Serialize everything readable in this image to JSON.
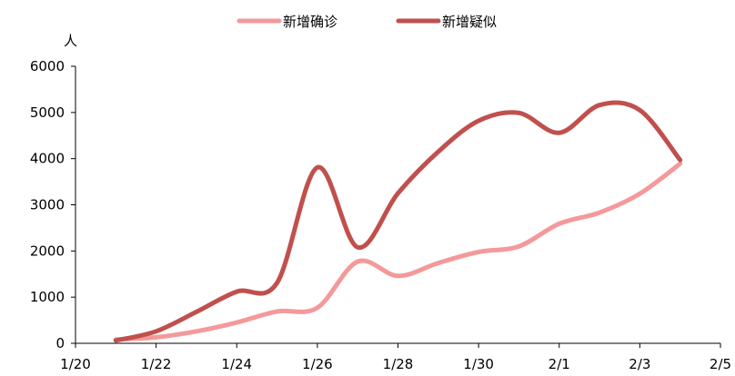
{
  "chart_data": {
    "type": "line",
    "ylabel": "人",
    "ylim": [
      0,
      6000
    ],
    "yticks": [
      "0",
      "1000",
      "2000",
      "3000",
      "4000",
      "5000",
      "6000"
    ],
    "xlim": [
      "2020-01-20",
      "2020-02-05"
    ],
    "xticks": [
      "1/20",
      "1/22",
      "1/24",
      "1/26",
      "1/28",
      "1/30",
      "2/1",
      "2/3",
      "2/5"
    ],
    "grid": false,
    "legend": "top-center",
    "x": [
      "2020-01-21",
      "2020-01-22",
      "2020-01-23",
      "2020-01-24",
      "2020-01-25",
      "2020-01-26",
      "2020-01-27",
      "2020-01-28",
      "2020-01-29",
      "2020-01-30",
      "2020-01-31",
      "2020-02-01",
      "2020-02-02",
      "2020-02-03",
      "2020-02-04"
    ],
    "series": [
      {
        "name": "新增确诊",
        "color": "#F4999B",
        "values": [
          80,
          130,
          260,
          450,
          690,
          770,
          1770,
          1460,
          1740,
          1980,
          2100,
          2590,
          2830,
          3240,
          3890
        ]
      },
      {
        "name": "新增疑似",
        "color": "#C0504D",
        "values": [
          60,
          260,
          680,
          1120,
          1310,
          3810,
          2080,
          3250,
          4150,
          4820,
          4990,
          4560,
          5160,
          5050,
          3970
        ]
      }
    ]
  }
}
